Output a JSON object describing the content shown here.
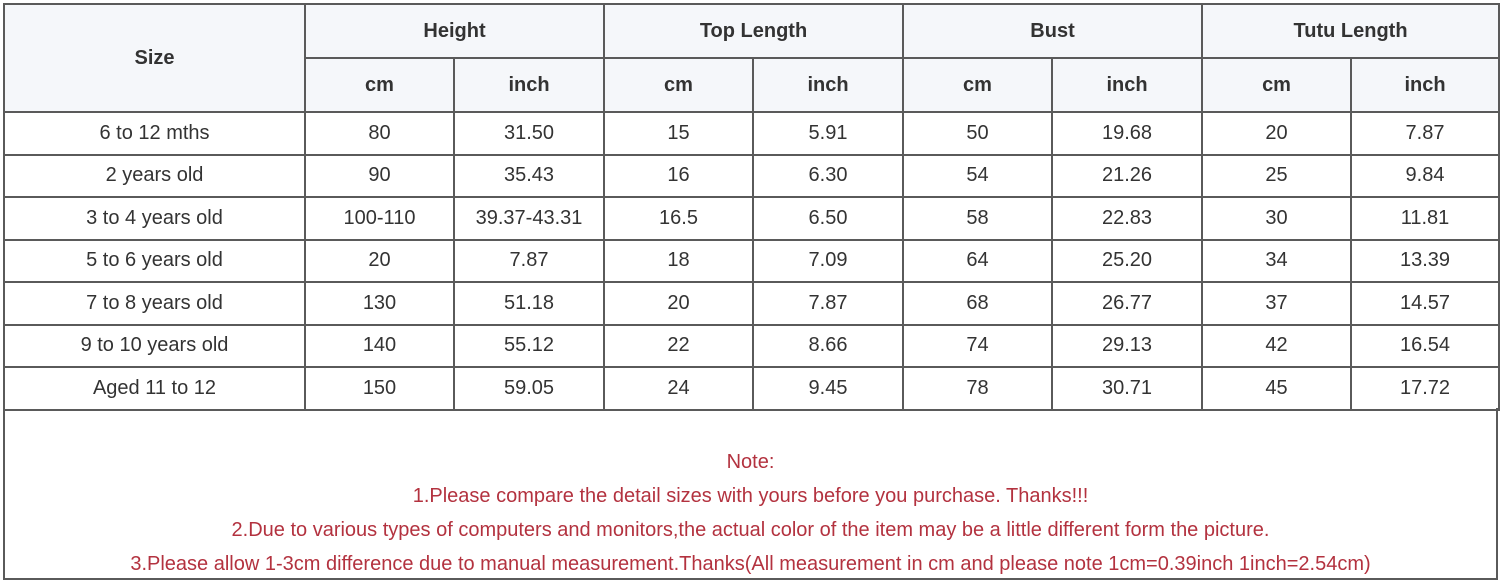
{
  "header": {
    "size": "Size",
    "groups": [
      "Height",
      "Top Length",
      "Bust",
      "Tutu Length"
    ],
    "units": [
      "cm",
      "inch",
      "cm",
      "inch",
      "cm",
      "inch",
      "cm",
      "inch"
    ]
  },
  "rows": [
    [
      "6 to 12 mths",
      "80",
      "31.50",
      "15",
      "5.91",
      "50",
      "19.68",
      "20",
      "7.87"
    ],
    [
      "2 years old",
      "90",
      "35.43",
      "16",
      "6.30",
      "54",
      "21.26",
      "25",
      "9.84"
    ],
    [
      "3 to 4 years old",
      "100-110",
      "39.37-43.31",
      "16.5",
      "6.50",
      "58",
      "22.83",
      "30",
      "11.81"
    ],
    [
      "5 to 6 years old",
      "20",
      "7.87",
      "18",
      "7.09",
      "64",
      "25.20",
      "34",
      "13.39"
    ],
    [
      "7 to 8 years old",
      "130",
      "51.18",
      "20",
      "7.87",
      "68",
      "26.77",
      "37",
      "14.57"
    ],
    [
      "9 to 10 years old",
      "140",
      "55.12",
      "22",
      "8.66",
      "74",
      "29.13",
      "42",
      "16.54"
    ],
    [
      "Aged 11 to 12",
      "150",
      "59.05",
      "24",
      "9.45",
      "78",
      "30.71",
      "45",
      "17.72"
    ]
  ],
  "note": {
    "title": "Note:",
    "lines": [
      "1.Please compare the detail sizes with yours before you purchase. Thanks!!!",
      "2.Due to various types of computers and monitors,the actual color of the item may be a little different form the picture.",
      "3.Please allow 1-3cm difference due to manual measurement.Thanks(All measurement in cm and please note 1cm=0.39inch 1inch=2.54cm)"
    ],
    "color": "#b3323f"
  },
  "colors": {
    "header_bg": "#f5f7fa",
    "border": "#5a5a5a",
    "text": "#333333"
  }
}
